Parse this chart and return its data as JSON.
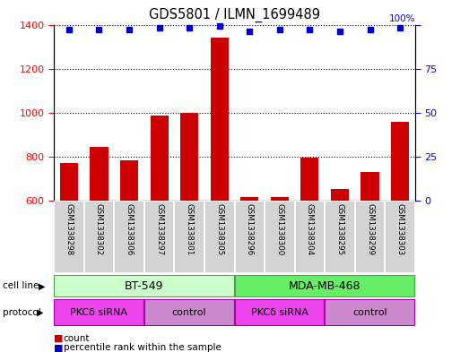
{
  "title": "GDS5801 / ILMN_1699489",
  "samples": [
    "GSM1338298",
    "GSM1338302",
    "GSM1338306",
    "GSM1338297",
    "GSM1338301",
    "GSM1338305",
    "GSM1338296",
    "GSM1338300",
    "GSM1338304",
    "GSM1338295",
    "GSM1338299",
    "GSM1338303"
  ],
  "counts": [
    770,
    845,
    785,
    985,
    1000,
    1340,
    618,
    618,
    795,
    655,
    730,
    960
  ],
  "percentiles": [
    97,
    97,
    97,
    98,
    98,
    99,
    96,
    97,
    97,
    96,
    97,
    98
  ],
  "ylim_left": [
    600,
    1400
  ],
  "ylim_right": [
    0,
    100
  ],
  "yticks_left": [
    600,
    800,
    1000,
    1200,
    1400
  ],
  "yticks_right": [
    0,
    25,
    50,
    75,
    100
  ],
  "bar_color": "#cc0000",
  "dot_color": "#0000cc",
  "cell_line_labels": [
    "BT-549",
    "MDA-MB-468"
  ],
  "cell_line_spans": [
    [
      0,
      5
    ],
    [
      6,
      11
    ]
  ],
  "cell_line_colors": [
    "#ccffcc",
    "#66ee66"
  ],
  "protocol_labels": [
    "PKCδ siRNA",
    "control",
    "PKCδ siRNA",
    "control"
  ],
  "protocol_spans": [
    [
      0,
      2
    ],
    [
      3,
      5
    ],
    [
      6,
      8
    ],
    [
      9,
      11
    ]
  ],
  "protocol_colors": [
    "#ee44ee",
    "#cc88cc",
    "#ee44ee",
    "#cc88cc"
  ],
  "bg_color": "#d3d3d3",
  "legend_count_color": "#cc0000",
  "legend_dot_color": "#0000cc",
  "xlim": [
    -0.5,
    11.5
  ]
}
